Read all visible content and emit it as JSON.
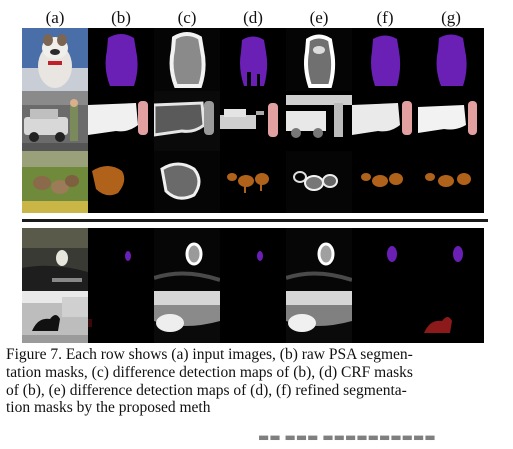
{
  "columns": [
    "(a)",
    "(b)",
    "(c)",
    "(d)",
    "(e)",
    "(f)",
    "(g)"
  ],
  "caption_lines": [
    "Figure 7. Each row shows (a) input images, (b) raw PSA segmen-",
    "tation masks, (c) difference detection maps of (b), (d) CRF masks",
    "of (b), (e) difference detection maps of (d), (f) refined segmenta-",
    "tion masks by the proposed meth"
  ],
  "colors": {
    "dog": "#6a1fb5",
    "person": "#e3a0a0",
    "sheep": "#b0621a",
    "bg": "#000000",
    "car_red": "#8c1a1a",
    "divider": "#1a1a1a"
  }
}
